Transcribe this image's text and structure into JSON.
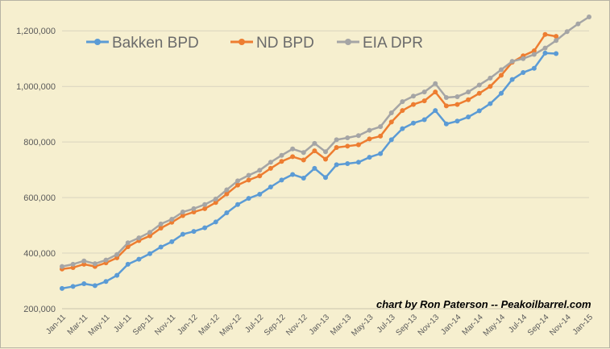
{
  "chart_data": {
    "type": "line",
    "credit": "chart by Ron Paterson -- Peakoilbarrel.com",
    "ylim": [
      200000,
      1250000
    ],
    "yticks": [
      "200,000",
      "400,000",
      "600,000",
      "800,000",
      "1,000,000",
      "1,200,000"
    ],
    "ytick_values": [
      200000,
      400000,
      600000,
      800000,
      1000000,
      1200000
    ],
    "grid": true,
    "legend_position": "top-left",
    "x": [
      "Jan-11",
      "Feb-11",
      "Mar-11",
      "Apr-11",
      "May-11",
      "Jun-11",
      "Jul-11",
      "Aug-11",
      "Sep-11",
      "Oct-11",
      "Nov-11",
      "Dec-11",
      "Jan-12",
      "Feb-12",
      "Mar-12",
      "Apr-12",
      "May-12",
      "Jun-12",
      "Jul-12",
      "Aug-12",
      "Sep-12",
      "Oct-12",
      "Nov-12",
      "Dec-12",
      "Jan-13",
      "Feb-13",
      "Mar-13",
      "Apr-13",
      "May-13",
      "Jun-13",
      "Jul-13",
      "Aug-13",
      "Sep-13",
      "Oct-13",
      "Nov-13",
      "Dec-13",
      "Jan-14",
      "Feb-14",
      "Mar-14",
      "Apr-14",
      "May-14",
      "Jun-14",
      "Jul-14",
      "Aug-14",
      "Sep-14",
      "Oct-14",
      "Nov-14",
      "Dec-14",
      "Jan-15"
    ],
    "x_tick_labels": [
      "Jan-11",
      "Mar-11",
      "May-11",
      "Jul-11",
      "Sep-11",
      "Nov-11",
      "Jan-12",
      "Mar-12",
      "May-12",
      "Jul-12",
      "Sep-12",
      "Nov-12",
      "Jan-13",
      "Mar-13",
      "May-13",
      "Jul-13",
      "Sep-13",
      "Nov-13",
      "Jan-14",
      "Mar-14",
      "May-14",
      "Jul-14",
      "Sep-14",
      "Nov-14",
      "Jan-15"
    ],
    "series": [
      {
        "name": "Bakken BPD",
        "color": "#5b9bd5",
        "values": [
          273000,
          280000,
          290000,
          283000,
          298000,
          320000,
          360000,
          378000,
          398000,
          422000,
          441000,
          468000,
          478000,
          491000,
          512000,
          545000,
          575000,
          597000,
          612000,
          638000,
          663000,
          683000,
          670000,
          705000,
          672000,
          718000,
          722000,
          727000,
          745000,
          758000,
          808000,
          848000,
          868000,
          880000,
          913000,
          865000,
          875000,
          890000,
          912000,
          938000,
          975000,
          1025000,
          1050000,
          1065000,
          1120000,
          1118000,
          null,
          null,
          null
        ]
      },
      {
        "name": "ND BPD",
        "color": "#ed7d31",
        "values": [
          343000,
          348000,
          360000,
          352000,
          365000,
          383000,
          423000,
          445000,
          462000,
          490000,
          511000,
          535000,
          548000,
          560000,
          582000,
          613000,
          645000,
          663000,
          678000,
          705000,
          730000,
          747000,
          735000,
          768000,
          738000,
          780000,
          785000,
          790000,
          811000,
          821000,
          872000,
          913000,
          935000,
          948000,
          980000,
          930000,
          935000,
          952000,
          975000,
          1000000,
          1040000,
          1087000,
          1110000,
          1128000,
          1187000,
          1180000,
          null,
          null,
          null
        ]
      },
      {
        "name": "EIA DPR",
        "color": "#a5a5a5",
        "values": [
          352000,
          360000,
          372000,
          362000,
          375000,
          395000,
          437000,
          455000,
          475000,
          505000,
          522000,
          548000,
          560000,
          575000,
          595000,
          628000,
          660000,
          680000,
          698000,
          727000,
          752000,
          775000,
          762000,
          795000,
          765000,
          808000,
          815000,
          823000,
          842000,
          855000,
          905000,
          945000,
          965000,
          980000,
          1010000,
          960000,
          963000,
          980000,
          1005000,
          1030000,
          1060000,
          1090000,
          1100000,
          1115000,
          1138000,
          1165000,
          1197000,
          1225000,
          1250000
        ]
      }
    ]
  }
}
